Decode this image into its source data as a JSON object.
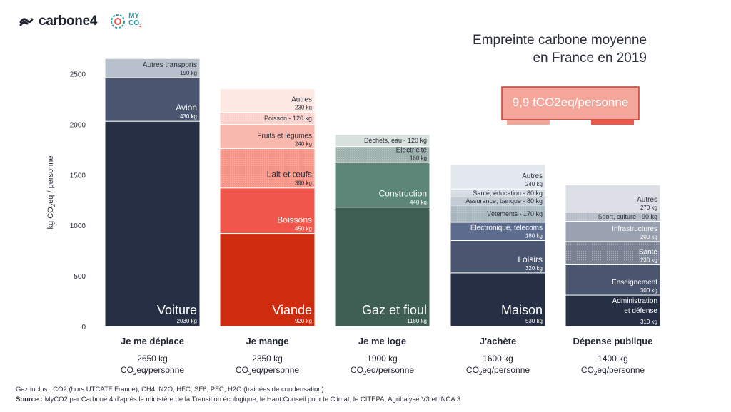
{
  "brand": {
    "name": "carbone4",
    "partner_line1": "MY",
    "partner_line2": "CO",
    "partner_sub": "2"
  },
  "title": {
    "line1": "Empreinte carbone moyenne",
    "line2": "en France en 2019"
  },
  "stamp": {
    "text": "9,9 tCO2eq/personne",
    "colors": [
      "#f4a69b",
      "#ffffff",
      "#e9594b"
    ]
  },
  "footer": {
    "line1": "Gaz inclus : CO2 (hors UTCATF France), CH4, N2O, HFC, SF6, PFC, H2O (trainées de condensation).",
    "line2_label": "Source :",
    "line2_text": " MyCO2 par Carbone 4 d'après le ministère de la Transition écologique, le Haut Conseil pour le Climat, le CITEPA, Agribalyse V3 et INCA 3."
  },
  "chart_data": {
    "type": "bar",
    "stacked": true,
    "ylabel": "kg CO2eq / personne",
    "ylim": [
      0,
      2650
    ],
    "yticks": [
      0,
      500,
      1000,
      1500,
      2000,
      2500
    ],
    "grid": false,
    "columns": [
      {
        "category": "Je me déplace",
        "total": "2650 kg",
        "unit": "CO2eq/personne",
        "segments": [
          {
            "label": "Voiture",
            "value": 2030,
            "value_label": "2030 kg",
            "color": "#262f44",
            "style": "big"
          },
          {
            "label": "Avion",
            "value": 430,
            "value_label": "430 kg",
            "color": "#4a5670",
            "style": "mid"
          },
          {
            "label": "Autres transports",
            "value": 190,
            "value_label": "190 kg",
            "color": "#b8c0cb",
            "style": "small"
          }
        ]
      },
      {
        "category": "Je mange",
        "total": "2350 kg",
        "unit": "CO2eq/personne",
        "segments": [
          {
            "label": "Viande",
            "value": 920,
            "value_label": "920 kg",
            "color": "#cf2b0f",
            "style": "big"
          },
          {
            "label": "Boissons",
            "value": 450,
            "value_label": "450 kg",
            "color": "#f0574a",
            "style": "mid"
          },
          {
            "label": "Lait et œufs",
            "value": 390,
            "value_label": "390 kg",
            "color": "#f79587",
            "style": "mid",
            "dotted": true
          },
          {
            "label": "Fruits et légumes",
            "value": 240,
            "value_label": "240 kg",
            "color": "#f9b8ad",
            "style": "small"
          },
          {
            "label": "Poisson",
            "value": 120,
            "value_label": "120 kg",
            "color": "#fbd2cb",
            "style": "inline",
            "dotted": true
          },
          {
            "label": "Autres",
            "value": 230,
            "value_label": "230 kg",
            "color": "#fde8e4",
            "style": "small"
          }
        ]
      },
      {
        "category": "Je me loge",
        "total": "1900 kg",
        "unit": "CO2eq/personne",
        "segments": [
          {
            "label": "Gaz et fioul",
            "value": 1180,
            "value_label": "1180 kg",
            "color": "#3f5f55",
            "style": "big"
          },
          {
            "label": "Construction",
            "value": 440,
            "value_label": "440 kg",
            "color": "#5b8678",
            "style": "mid"
          },
          {
            "label": "Électricité",
            "value": 160,
            "value_label": "160 kg",
            "color": "#9fb3ae",
            "style": "small",
            "dotted": true
          },
          {
            "label": "Déchets, eau",
            "value": 120,
            "value_label": "120 kg",
            "color": "#d9e1de",
            "style": "inline"
          }
        ]
      },
      {
        "category": "J'achète",
        "total": "1600 kg",
        "unit": "CO2eq/personne",
        "segments": [
          {
            "label": "Maison",
            "value": 530,
            "value_label": "530 kg",
            "color": "#262f44",
            "style": "big"
          },
          {
            "label": "Loisirs",
            "value": 320,
            "value_label": "320 kg",
            "color": "#4a5670",
            "style": "mid"
          },
          {
            "label": "Électronique, telecoms",
            "value": 180,
            "value_label": "180 kg",
            "color": "#5d6d90",
            "style": "small"
          },
          {
            "label": "Vêtements",
            "value": 170,
            "value_label": "170 kg",
            "color": "#aab8c0",
            "style": "inline",
            "dotted": true
          },
          {
            "label": "Assurance, banque",
            "value": 80,
            "value_label": "80 kg",
            "color": "#c3ccd5",
            "style": "inline"
          },
          {
            "label": "Santé, éducation",
            "value": 80,
            "value_label": "80 kg",
            "color": "#d5dce3",
            "style": "inline",
            "dotted": true
          },
          {
            "label": "Autres",
            "value": 240,
            "value_label": "240 kg",
            "color": "#e3e7ee",
            "style": "small"
          }
        ]
      },
      {
        "category": "Dépense publique",
        "total": "1400 kg",
        "unit": "CO2eq/personne",
        "segments": [
          {
            "label": "Administration et défense",
            "label_lines": [
              "Administration",
              "et défense"
            ],
            "value": 310,
            "value_label": "310 kg",
            "color": "#262f44",
            "style": "small"
          },
          {
            "label": "Enseignement",
            "value": 300,
            "value_label": "300 kg",
            "color": "#4a5670",
            "style": "small"
          },
          {
            "label": "Santé",
            "value": 230,
            "value_label": "230 kg",
            "color": "#7a8294",
            "style": "small",
            "dotted": true
          },
          {
            "label": "Infrastructures",
            "value": 200,
            "value_label": "200 kg",
            "color": "#9aa1b0",
            "style": "small"
          },
          {
            "label": "Sport, culture",
            "value": 90,
            "value_label": "90 kg",
            "color": "#b9bfca",
            "style": "inline",
            "dotted": true
          },
          {
            "label": "Autres",
            "value": 270,
            "value_label": "270 kg",
            "color": "#dcdfe5",
            "style": "small"
          }
        ]
      }
    ]
  }
}
